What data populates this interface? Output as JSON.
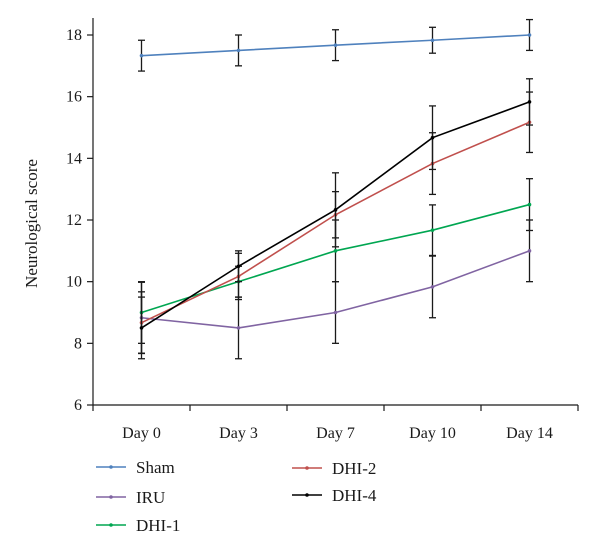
{
  "chart_data": {
    "type": "line",
    "title": "",
    "xlabel": "",
    "ylabel": "Neurological score",
    "categories": [
      "Day 0",
      "Day 3",
      "Day 7",
      "Day 10",
      "Day 14"
    ],
    "ylim": [
      6,
      18
    ],
    "yticks": [
      6,
      8,
      10,
      12,
      14,
      16,
      18
    ],
    "grid": false,
    "legend_position": "bottom",
    "series": [
      {
        "name": "Sham",
        "color": "#4f81bd",
        "values": [
          17.33,
          17.5,
          17.67,
          17.83,
          18.0
        ],
        "errors": [
          0.5,
          0.5,
          0.5,
          0.42,
          0.5
        ]
      },
      {
        "name": "IRU",
        "color": "#8064a2",
        "values": [
          8.83,
          8.5,
          9.0,
          9.83,
          11.0
        ],
        "errors": [
          1.15,
          1.0,
          1.0,
          1.0,
          1.0
        ]
      },
      {
        "name": "DHI-1",
        "color": "#00a651",
        "values": [
          9.0,
          10.0,
          11.0,
          11.67,
          12.5
        ],
        "errors": [
          1.0,
          0.5,
          1.0,
          0.82,
          0.84
        ]
      },
      {
        "name": "DHI-2",
        "color": "#c0504d",
        "values": [
          8.67,
          10.17,
          12.17,
          13.83,
          15.17
        ],
        "errors": [
          1.0,
          0.75,
          0.75,
          1.0,
          0.98
        ]
      },
      {
        "name": "DHI-4",
        "color": "#000000",
        "values": [
          8.5,
          10.5,
          12.33,
          14.67,
          15.83
        ],
        "errors": [
          1.0,
          0.5,
          1.2,
          1.03,
          0.75
        ]
      }
    ]
  }
}
